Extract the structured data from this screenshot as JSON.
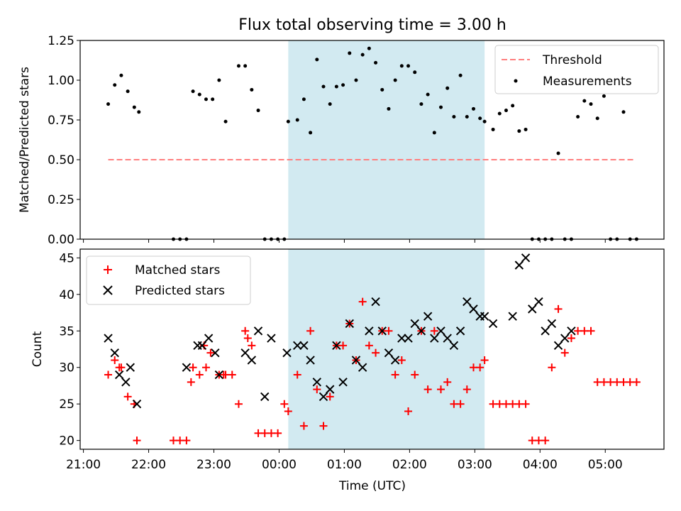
{
  "chart_data": [
    {
      "type": "scatter",
      "title": "Flux total observing time = 3.00 h",
      "ylabel": "Matched/Predicted stars",
      "ylim": [
        0,
        1.25
      ],
      "yticks": [
        "0.00",
        "0.25",
        "0.50",
        "0.75",
        "1.00",
        "1.25"
      ],
      "x_range_hours": [
        20.95,
        29.9
      ],
      "highlight_span_hours": [
        24.14,
        27.15
      ],
      "highlight_color": "#add8e6",
      "threshold": {
        "name": "Threshold",
        "value": 0.5,
        "x_span_hours": [
          21.38,
          29.47
        ],
        "color": "#ff7f7f",
        "style": "dashed"
      },
      "series": [
        {
          "name": "Measurements",
          "color": "#000000",
          "marker": "dot",
          "x": [
            21.38,
            21.48,
            21.58,
            21.68,
            21.78,
            21.85,
            22.38,
            22.48,
            22.58,
            22.68,
            22.78,
            22.88,
            22.98,
            23.08,
            23.18,
            23.38,
            23.48,
            23.58,
            23.68,
            23.78,
            23.88,
            23.98,
            24.08,
            24.14,
            24.28,
            24.38,
            24.48,
            24.58,
            24.68,
            24.78,
            24.88,
            24.98,
            25.08,
            25.18,
            25.28,
            25.38,
            25.48,
            25.58,
            25.68,
            25.78,
            25.88,
            25.98,
            26.08,
            26.18,
            26.28,
            26.38,
            26.48,
            26.58,
            26.68,
            26.78,
            26.88,
            26.98,
            27.08,
            27.15,
            27.28,
            27.38,
            27.48,
            27.58,
            27.68,
            27.78,
            27.88,
            27.98,
            28.08,
            28.18,
            28.28,
            28.38,
            28.48,
            28.58,
            28.68,
            28.78,
            28.88,
            28.98,
            29.08,
            29.18,
            29.28,
            29.38,
            29.48
          ],
          "y": [
            0.85,
            0.97,
            1.03,
            0.93,
            0.83,
            0.8,
            0.0,
            0.0,
            0.0,
            0.93,
            0.91,
            0.88,
            0.88,
            1.0,
            0.74,
            1.09,
            1.09,
            0.94,
            0.81,
            0.0,
            0.0,
            0.0,
            0.0,
            0.74,
            0.75,
            0.88,
            0.67,
            1.13,
            0.96,
            0.85,
            0.96,
            0.97,
            1.17,
            1.0,
            1.16,
            1.2,
            1.11,
            0.94,
            0.82,
            1.0,
            1.09,
            1.09,
            1.05,
            0.85,
            0.91,
            0.67,
            0.83,
            0.95,
            0.77,
            1.03,
            0.77,
            0.82,
            0.76,
            0.74,
            0.69,
            0.79,
            0.81,
            0.84,
            0.68,
            0.69,
            0.0,
            0.0,
            0.0,
            0.0,
            0.54,
            0.0,
            0.0,
            0.77,
            0.87,
            0.85,
            0.76,
            0.9,
            0.0,
            0.0,
            0.8,
            0.0,
            0.0
          ]
        }
      ],
      "legend": {
        "position": "top-right",
        "entries": [
          "Threshold",
          "Measurements"
        ]
      }
    },
    {
      "type": "scatter",
      "xlabel": "Time (UTC)",
      "ylabel": "Count",
      "ylim": [
        18.8,
        46.2
      ],
      "yticks": [
        "20",
        "25",
        "30",
        "35",
        "40",
        "45"
      ],
      "xticks": [
        "21:00",
        "22:00",
        "23:00",
        "00:00",
        "01:00",
        "02:00",
        "03:00",
        "04:00",
        "05:00"
      ],
      "x_range_hours": [
        20.95,
        29.9
      ],
      "highlight_span_hours": [
        24.14,
        27.15
      ],
      "highlight_color": "#add8e6",
      "series": [
        {
          "name": "Matched stars",
          "color": "#ff0000",
          "marker": "plus",
          "x": [
            21.38,
            21.48,
            21.55,
            21.58,
            21.68,
            21.78,
            21.82,
            22.38,
            22.48,
            22.58,
            22.65,
            22.68,
            22.78,
            22.85,
            22.88,
            22.95,
            23.08,
            23.15,
            23.18,
            23.28,
            23.38,
            23.48,
            23.52,
            23.58,
            23.68,
            23.78,
            23.88,
            23.98,
            24.08,
            24.14,
            24.28,
            24.38,
            24.48,
            24.58,
            24.68,
            24.78,
            24.88,
            24.98,
            25.08,
            25.18,
            25.28,
            25.38,
            25.48,
            25.58,
            25.68,
            25.78,
            25.88,
            25.98,
            26.08,
            26.18,
            26.28,
            26.38,
            26.48,
            26.58,
            26.68,
            26.78,
            26.88,
            26.98,
            27.08,
            27.15,
            27.28,
            27.38,
            27.48,
            27.58,
            27.68,
            27.78,
            27.88,
            27.98,
            28.08,
            28.18,
            28.28,
            28.38,
            28.48,
            28.58,
            28.68,
            28.78,
            28.88,
            28.98,
            29.08,
            29.18,
            29.28,
            29.38,
            29.48
          ],
          "y": [
            29,
            31,
            30,
            30,
            26,
            25,
            20,
            20,
            20,
            20,
            28,
            30,
            29,
            33,
            30,
            32,
            29,
            29,
            29,
            29,
            25,
            35,
            34,
            33,
            21,
            21,
            21,
            21,
            25,
            24,
            29,
            22,
            35,
            27,
            22,
            26,
            33,
            33,
            36,
            31,
            39,
            33,
            32,
            35,
            35,
            29,
            31,
            24,
            29,
            35,
            27,
            35,
            27,
            28,
            25,
            25,
            27,
            30,
            30,
            31,
            25,
            25,
            25,
            25,
            25,
            25,
            20,
            20,
            20,
            30,
            38,
            32,
            34,
            35,
            35,
            35,
            28,
            28,
            28,
            28,
            28,
            28,
            28
          ]
        },
        {
          "name": "Predicted stars",
          "color": "#000000",
          "marker": "x",
          "x": [
            21.38,
            21.48,
            21.55,
            21.65,
            21.72,
            21.82,
            22.58,
            22.75,
            22.82,
            22.92,
            23.02,
            23.08,
            23.48,
            23.58,
            23.68,
            23.78,
            23.88,
            24.12,
            24.28,
            24.38,
            24.48,
            24.58,
            24.68,
            24.78,
            24.88,
            24.98,
            25.08,
            25.18,
            25.28,
            25.38,
            25.48,
            25.58,
            25.68,
            25.78,
            25.88,
            25.98,
            26.08,
            26.18,
            26.28,
            26.38,
            26.48,
            26.58,
            26.68,
            26.78,
            26.88,
            26.98,
            27.08,
            27.15,
            27.28,
            27.58,
            27.68,
            27.78,
            27.88,
            27.98,
            28.08,
            28.18,
            28.28,
            28.38,
            28.48
          ],
          "y": [
            34,
            32,
            29,
            28,
            30,
            25,
            30,
            33,
            33,
            34,
            32,
            29,
            32,
            31,
            35,
            26,
            34,
            32,
            33,
            33,
            31,
            28,
            26,
            27,
            33,
            28,
            36,
            31,
            30,
            35,
            39,
            35,
            32,
            31,
            34,
            34,
            36,
            35,
            37,
            34,
            35,
            34,
            33,
            35,
            39,
            38,
            37,
            37,
            36,
            37,
            44,
            45,
            38,
            39,
            35,
            36,
            33,
            34,
            35
          ]
        }
      ],
      "legend": {
        "position": "top-left",
        "entries": [
          "Matched stars",
          "Predicted stars"
        ]
      }
    }
  ]
}
